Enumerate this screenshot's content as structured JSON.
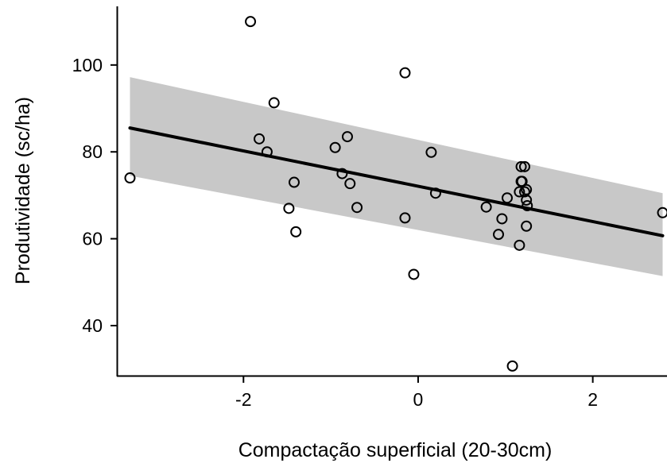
{
  "chart_data": {
    "type": "scatter",
    "title": "",
    "xlabel": "Compactação superficial (20-30cm)",
    "ylabel": "Produtividade (sc/ha)",
    "xlim": [
      -3.45,
      2.85
    ],
    "ylim": [
      28.3,
      113.5
    ],
    "x_ticks": [
      -2,
      0,
      2
    ],
    "y_ticks": [
      40,
      60,
      80,
      100
    ],
    "grid": false,
    "legend": "none",
    "points": {
      "x": [
        -3.3,
        -1.92,
        -1.65,
        -1.82,
        -1.73,
        -1.42,
        -1.48,
        -1.4,
        -0.95,
        -0.81,
        -0.87,
        -0.78,
        -0.7,
        -0.15,
        -0.15,
        -0.05,
        0.15,
        0.2,
        0.78,
        0.92,
        0.96,
        1.02,
        1.08,
        1.16,
        1.18,
        1.18,
        1.16,
        1.19,
        1.22,
        1.22,
        1.24,
        1.24,
        1.25,
        1.24,
        2.8
      ],
      "y": [
        74,
        110,
        91.3,
        83,
        80,
        73,
        67,
        61.6,
        81,
        83.5,
        75,
        72.7,
        67.2,
        98.2,
        64.8,
        51.8,
        79.9,
        70.5,
        67.3,
        61,
        64.6,
        69.4,
        30.7,
        58.5,
        76.6,
        73.2,
        70.8,
        73.2,
        76.6,
        70.8,
        71.3,
        68.9,
        67.6,
        62.9,
        66
      ]
    },
    "fit": {
      "x": [
        -3.3,
        2.8
      ],
      "y": [
        85.5,
        60.7
      ],
      "ci_lower": [
        74.5,
        51.4
      ],
      "ci_upper": [
        97.2,
        70.5
      ],
      "colors": {
        "line": "#000000",
        "band": "#c8c8c8",
        "points": "#000000"
      }
    }
  }
}
